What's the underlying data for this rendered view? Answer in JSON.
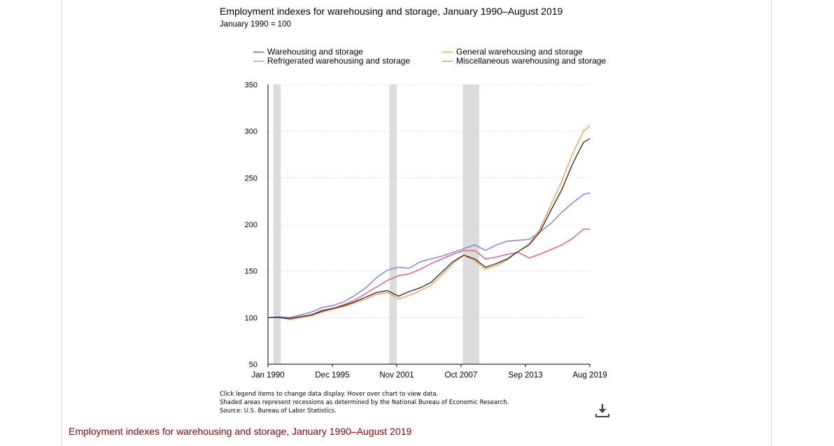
{
  "title": "Employment indexes for warehousing and storage, January 1990–August 2019",
  "subtitle": "January 1990 = 100",
  "notes": [
    "Click legend items to change data display. Hover over chart to view data.",
    "Shaded areas represent recessions as determined by the National Bureau of Economic Research.",
    "Source: U.S. Bureau of Labor Statistics."
  ],
  "bottom_link": "Employment indexes for warehousing and storage, January 1990–August 2019",
  "download_icon": "download-icon",
  "chart_data": {
    "type": "line",
    "title": "Employment indexes for warehousing and storage, January 1990–August 2019",
    "subtitle": "January 1990 = 100",
    "xlabel": "",
    "ylabel": "",
    "x_range": [
      "Jan 1990",
      "Aug 2019"
    ],
    "x_ticks": [
      "Jan 1990",
      "Dec 1995",
      "Nov 2001",
      "Oct 2007",
      "Sep 2013",
      "Aug 2019"
    ],
    "y_ticks": [
      50,
      100,
      150,
      200,
      250,
      300,
      350
    ],
    "ylim": [
      50,
      350
    ],
    "grid": "horizontal dotted",
    "legend_position": "top",
    "recessions": [
      {
        "start": "Jul 1990",
        "end": "Mar 1991"
      },
      {
        "start": "Mar 2001",
        "end": "Nov 2001"
      },
      {
        "start": "Dec 2007",
        "end": "Jun 2009"
      }
    ],
    "series": [
      {
        "name": "Warehousing and storage",
        "color": "#333333",
        "points": [
          [
            "Jan 1990",
            100
          ],
          [
            "Jan 1991",
            100
          ],
          [
            "Jan 1992",
            99
          ],
          [
            "Jan 1993",
            101
          ],
          [
            "Jan 1994",
            103
          ],
          [
            "Jan 1995",
            107
          ],
          [
            "Jan 1996",
            110
          ],
          [
            "Jan 1997",
            113
          ],
          [
            "Jan 1998",
            117
          ],
          [
            "Jan 1999",
            122
          ],
          [
            "Jan 2000",
            127
          ],
          [
            "Jan 2001",
            129
          ],
          [
            "Jan 2002",
            123
          ],
          [
            "Jan 2003",
            128
          ],
          [
            "Jan 2004",
            132
          ],
          [
            "Jan 2005",
            138
          ],
          [
            "Jan 2006",
            149
          ],
          [
            "Jan 2007",
            160
          ],
          [
            "Jan 2008",
            167
          ],
          [
            "Jan 2009",
            163
          ],
          [
            "Jan 2010",
            154
          ],
          [
            "Jan 2011",
            158
          ],
          [
            "Jan 2012",
            163
          ],
          [
            "Jan 2013",
            171
          ],
          [
            "Jan 2014",
            178
          ],
          [
            "Jan 2015",
            192
          ],
          [
            "Jan 2016",
            215
          ],
          [
            "Jan 2017",
            237
          ],
          [
            "Jan 2018",
            265
          ],
          [
            "Jan 2019",
            288
          ],
          [
            "Aug 2019",
            292
          ]
        ]
      },
      {
        "name": "General warehousing and storage",
        "color": "#f5a04e",
        "points": [
          [
            "Jan 1990",
            100
          ],
          [
            "Jan 1991",
            100
          ],
          [
            "Jan 1992",
            98
          ],
          [
            "Jan 1993",
            100
          ],
          [
            "Jan 1994",
            102
          ],
          [
            "Jan 1995",
            106
          ],
          [
            "Jan 1996",
            109
          ],
          [
            "Jan 1997",
            112
          ],
          [
            "Jan 1998",
            116
          ],
          [
            "Jan 1999",
            120
          ],
          [
            "Jan 2000",
            125
          ],
          [
            "Jan 2001",
            127
          ],
          [
            "Jan 2002",
            120
          ],
          [
            "Jan 2003",
            124
          ],
          [
            "Jan 2004",
            129
          ],
          [
            "Jan 2005",
            135
          ],
          [
            "Jan 2006",
            146
          ],
          [
            "Jan 2007",
            158
          ],
          [
            "Jan 2008",
            167
          ],
          [
            "Jan 2009",
            161
          ],
          [
            "Jan 2010",
            152
          ],
          [
            "Jan 2011",
            156
          ],
          [
            "Jan 2012",
            162
          ],
          [
            "Jan 2013",
            171
          ],
          [
            "Jan 2014",
            179
          ],
          [
            "Jan 2015",
            195
          ],
          [
            "Jan 2016",
            221
          ],
          [
            "Jan 2017",
            246
          ],
          [
            "Jan 2018",
            276
          ],
          [
            "Jan 2019",
            300
          ],
          [
            "Aug 2019",
            306
          ]
        ]
      },
      {
        "name": "Refrigerated warehousing and storage",
        "color": "#7b7fe0",
        "points": [
          [
            "Jan 1990",
            100
          ],
          [
            "Jan 1991",
            101
          ],
          [
            "Jan 1992",
            100
          ],
          [
            "Jan 1993",
            103
          ],
          [
            "Jan 1994",
            106
          ],
          [
            "Jan 1995",
            111
          ],
          [
            "Jan 1996",
            113
          ],
          [
            "Jan 1997",
            117
          ],
          [
            "Jan 1998",
            124
          ],
          [
            "Jan 1999",
            132
          ],
          [
            "Jan 2000",
            143
          ],
          [
            "Jan 2001",
            151
          ],
          [
            "Jan 2002",
            154
          ],
          [
            "Jan 2003",
            153
          ],
          [
            "Jan 2004",
            160
          ],
          [
            "Jan 2005",
            163
          ],
          [
            "Jan 2006",
            166
          ],
          [
            "Jan 2007",
            170
          ],
          [
            "Jan 2008",
            174
          ],
          [
            "Jan 2009",
            178
          ],
          [
            "Jan 2010",
            172
          ],
          [
            "Jan 2011",
            178
          ],
          [
            "Jan 2012",
            182
          ],
          [
            "Jan 2013",
            183
          ],
          [
            "Jan 2014",
            184
          ],
          [
            "Jan 2015",
            192
          ],
          [
            "Jan 2016",
            201
          ],
          [
            "Jan 2017",
            213
          ],
          [
            "Jan 2018",
            223
          ],
          [
            "Jan 2019",
            232
          ],
          [
            "Aug 2019",
            234
          ]
        ]
      },
      {
        "name": "Miscellaneous warehousing and storage",
        "color": "#e8577a",
        "points": [
          [
            "Jan 1990",
            100
          ],
          [
            "Jan 1991",
            100
          ],
          [
            "Jan 1992",
            99
          ],
          [
            "Jan 1993",
            101
          ],
          [
            "Jan 1994",
            103
          ],
          [
            "Jan 1995",
            108
          ],
          [
            "Jan 1996",
            110
          ],
          [
            "Jan 1997",
            114
          ],
          [
            "Jan 1998",
            119
          ],
          [
            "Jan 1999",
            126
          ],
          [
            "Jan 2000",
            133
          ],
          [
            "Jan 2001",
            140
          ],
          [
            "Jan 2002",
            145
          ],
          [
            "Jan 2003",
            147
          ],
          [
            "Jan 2004",
            152
          ],
          [
            "Jan 2005",
            158
          ],
          [
            "Jan 2006",
            163
          ],
          [
            "Jan 2007",
            168
          ],
          [
            "Jan 2008",
            172
          ],
          [
            "Jan 2009",
            172
          ],
          [
            "Jan 2010",
            163
          ],
          [
            "Jan 2011",
            165
          ],
          [
            "Jan 2012",
            168
          ],
          [
            "Jan 2013",
            170
          ],
          [
            "Jan 2014",
            164
          ],
          [
            "Jan 2015",
            168
          ],
          [
            "Jan 2016",
            173
          ],
          [
            "Jan 2017",
            178
          ],
          [
            "Jan 2018",
            185
          ],
          [
            "Jan 2019",
            195
          ],
          [
            "Aug 2019",
            195
          ]
        ]
      }
    ]
  }
}
